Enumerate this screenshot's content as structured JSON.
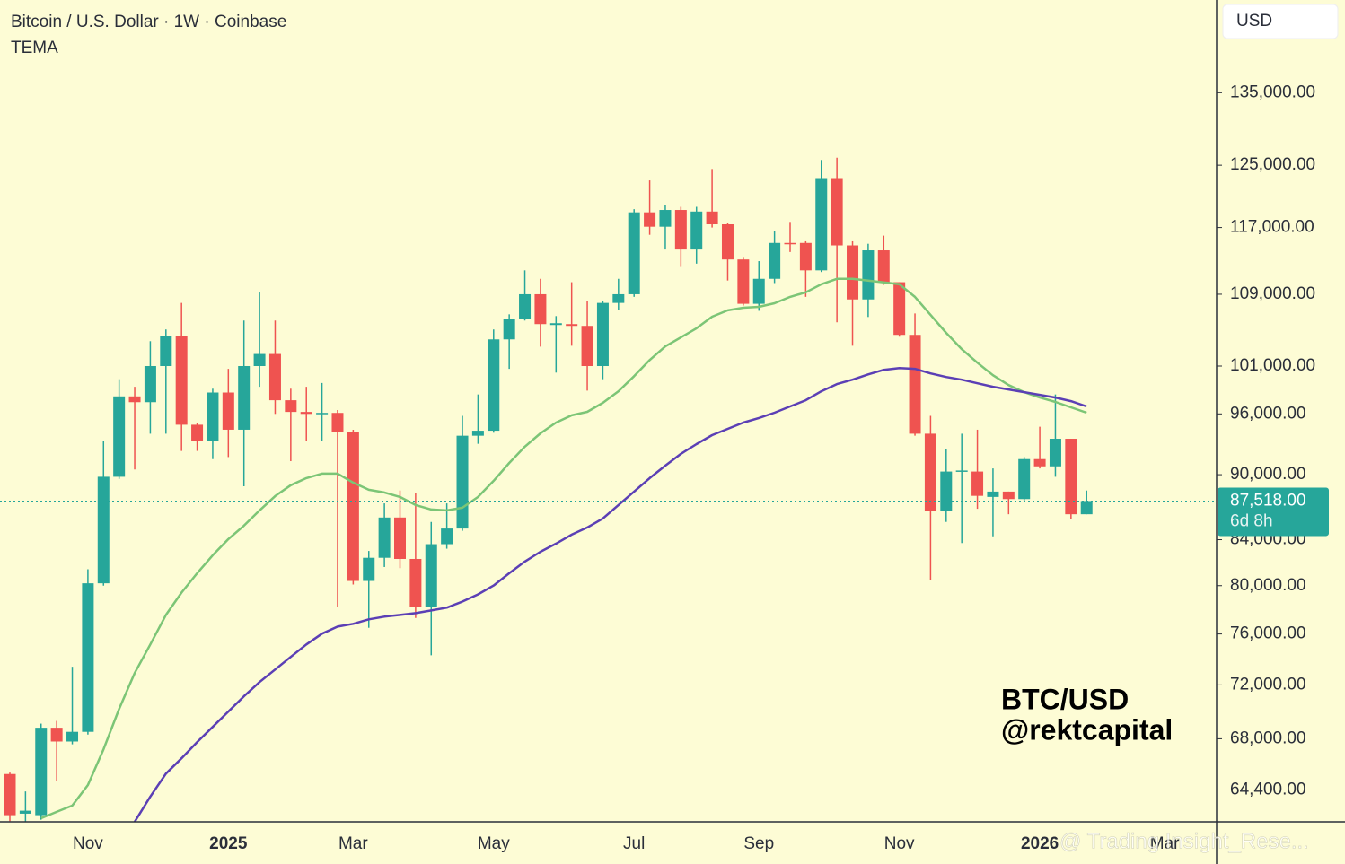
{
  "chart_data": {
    "type": "candlestick",
    "title": "Bitcoin / U.S. Dollar · 1W · Coinbase",
    "indicator": "TEMA",
    "currency": "USD",
    "annotation": [
      "BTC/USD",
      "@rektcapital"
    ],
    "watermark": "@ Trading Insight_Rese...",
    "log_scale": true,
    "grid": false,
    "up_color": "#26a69a",
    "down_color": "#ef5350",
    "ylim": [
      62260,
      148960
    ],
    "yticks": [
      {
        "value": 64400,
        "label": "64,400.00"
      },
      {
        "value": 68000,
        "label": "68,000.00"
      },
      {
        "value": 72000,
        "label": "72,000.00"
      },
      {
        "value": 76000,
        "label": "76,000.00"
      },
      {
        "value": 80000,
        "label": "80,000.00"
      },
      {
        "value": 84000,
        "label": "84,000.00"
      },
      {
        "value": 90000,
        "label": "90,000.00"
      },
      {
        "value": 96000,
        "label": "96,000.00"
      },
      {
        "value": 101000,
        "label": "101,000.00"
      },
      {
        "value": 109000,
        "label": "109,000.00"
      },
      {
        "value": 117000,
        "label": "117,000.00"
      },
      {
        "value": 125000,
        "label": "125,000.00"
      },
      {
        "value": 135000,
        "label": "135,000.00"
      }
    ],
    "last_price": {
      "value": 87518,
      "label": "87,518.00"
    },
    "countdown": "6d 8h",
    "categories": [
      null,
      null,
      null,
      null,
      null,
      "Nov",
      null,
      null,
      null,
      null,
      null,
      null,
      null,
      null,
      "2025",
      null,
      null,
      null,
      null,
      null,
      null,
      null,
      "Mar",
      null,
      null,
      null,
      null,
      null,
      null,
      null,
      null,
      "May",
      null,
      null,
      null,
      null,
      null,
      null,
      null,
      null,
      "Jul",
      null,
      null,
      null,
      null,
      null,
      null,
      null,
      "Sep",
      null,
      null,
      null,
      null,
      null,
      null,
      null,
      null,
      "Nov",
      null,
      null,
      null,
      null,
      null,
      null,
      null,
      null,
      "2026",
      null,
      null,
      null,
      null,
      null,
      null,
      null,
      "Mar"
    ],
    "open": [
      65500,
      62800,
      62700,
      68800,
      67800,
      68500,
      80200,
      89800,
      97800,
      97200,
      101000,
      104300,
      94900,
      93300,
      98200,
      94400,
      101000,
      102300,
      97400,
      96200,
      96000,
      96100,
      94200,
      80400,
      82400,
      86000,
      82300,
      78200,
      83600,
      85000,
      93800,
      94300,
      103900,
      106200,
      109000,
      105500,
      105600,
      105400,
      101000,
      108000,
      109000,
      118900,
      117100,
      119200,
      114300,
      119000,
      117400,
      113100,
      107900,
      110800,
      115100,
      115100,
      111800,
      123300,
      114800,
      108400,
      114200,
      110400,
      104400,
      94000,
      86600,
      90300,
      90300,
      87900,
      88400,
      87700,
      91500,
      90800,
      93500,
      86300,
      null,
      null,
      null,
      null,
      null
    ],
    "high": [
      65600,
      64300,
      69100,
      69300,
      73400,
      81400,
      93300,
      99600,
      98800,
      103700,
      105000,
      108000,
      95100,
      98600,
      100700,
      106000,
      109200,
      106000,
      98600,
      98800,
      99200,
      96400,
      94400,
      83000,
      87300,
      88500,
      88300,
      85600,
      87300,
      95800,
      98000,
      105000,
      106700,
      111800,
      110800,
      106500,
      110400,
      108200,
      108200,
      110800,
      119300,
      123000,
      119800,
      119600,
      119600,
      124500,
      117600,
      113300,
      112900,
      116600,
      117700,
      115300,
      125700,
      126000,
      115300,
      115000,
      116000,
      110400,
      106800,
      95800,
      92500,
      94000,
      94400,
      90600,
      88400,
      91700,
      94700,
      98000,
      93500,
      88500,
      null,
      null,
      null,
      null,
      null
    ],
    "low": [
      62300,
      62100,
      62400,
      65000,
      67600,
      68300,
      80000,
      89600,
      90500,
      94000,
      94000,
      92300,
      92300,
      91500,
      91700,
      88900,
      98800,
      96000,
      91300,
      93300,
      93300,
      78200,
      80100,
      76500,
      81600,
      81500,
      77300,
      74300,
      83200,
      84800,
      93000,
      94100,
      100700,
      106000,
      103100,
      100300,
      103200,
      98400,
      99600,
      107200,
      108700,
      116100,
      114300,
      112200,
      112600,
      117000,
      110600,
      107700,
      107100,
      110300,
      114000,
      108700,
      111600,
      105800,
      103200,
      106400,
      110100,
      104200,
      93800,
      80500,
      85600,
      83700,
      86800,
      84300,
      86300,
      87500,
      90600,
      89800,
      85900,
      86300,
      null,
      null,
      null,
      null,
      null
    ],
    "close": [
      62700,
      63000,
      68800,
      67800,
      68500,
      80200,
      89800,
      97800,
      97200,
      101000,
      104300,
      94900,
      93300,
      98200,
      94400,
      101000,
      102300,
      97400,
      96200,
      96000,
      96100,
      94200,
      80400,
      82400,
      86000,
      82300,
      78200,
      83600,
      85000,
      93800,
      94300,
      103900,
      106200,
      109000,
      105600,
      105700,
      105400,
      101000,
      108000,
      109000,
      118900,
      117100,
      119200,
      114300,
      119000,
      117400,
      113100,
      107900,
      110800,
      115100,
      115000,
      111800,
      123300,
      114800,
      108400,
      114200,
      110400,
      104400,
      94000,
      86600,
      90300,
      90400,
      88000,
      88400,
      87700,
      91500,
      90800,
      93500,
      86300,
      87518,
      null,
      null,
      null,
      null,
      null
    ],
    "lines": [
      {
        "color": "#7cc576",
        "values": [
          null,
          null,
          62500,
          62920,
          63340,
          64740,
          67240,
          70190,
          72910,
          75160,
          77550,
          79410,
          81060,
          82620,
          84050,
          85260,
          86650,
          87980,
          89000,
          89670,
          90100,
          90100,
          89250,
          88570,
          88320,
          87900,
          87150,
          86730,
          86650,
          86900,
          87900,
          89420,
          91130,
          92710,
          94040,
          95120,
          95850,
          96210,
          97130,
          98330,
          99920,
          101650,
          103130,
          104120,
          105130,
          106430,
          107150,
          107450,
          107550,
          107960,
          108690,
          109220,
          110160,
          110800,
          110800,
          110590,
          110370,
          110160,
          108690,
          106640,
          104620,
          102820,
          101360,
          100020,
          98980,
          98240,
          97680,
          97220,
          96670,
          96120,
          null,
          null,
          null,
          null,
          null
        ]
      },
      {
        "color": "#5b3fb5",
        "values": [
          null,
          null,
          null,
          null,
          null,
          null,
          null,
          null,
          62260,
          63950,
          65530,
          66600,
          67760,
          68860,
          69990,
          71130,
          72220,
          73190,
          74170,
          75160,
          76020,
          76600,
          76820,
          77190,
          77410,
          77550,
          77700,
          77920,
          78150,
          78660,
          79260,
          80010,
          81060,
          82070,
          82930,
          83650,
          84450,
          85100,
          85910,
          87150,
          88400,
          89670,
          90870,
          92010,
          92970,
          93860,
          94490,
          95120,
          95580,
          96120,
          96760,
          97400,
          98330,
          99080,
          99550,
          100110,
          100600,
          100790,
          100700,
          100210,
          99830,
          99550,
          99170,
          98800,
          98520,
          98240,
          97960,
          97680,
          97310,
          96760,
          null,
          null,
          null,
          null,
          null
        ]
      }
    ]
  }
}
